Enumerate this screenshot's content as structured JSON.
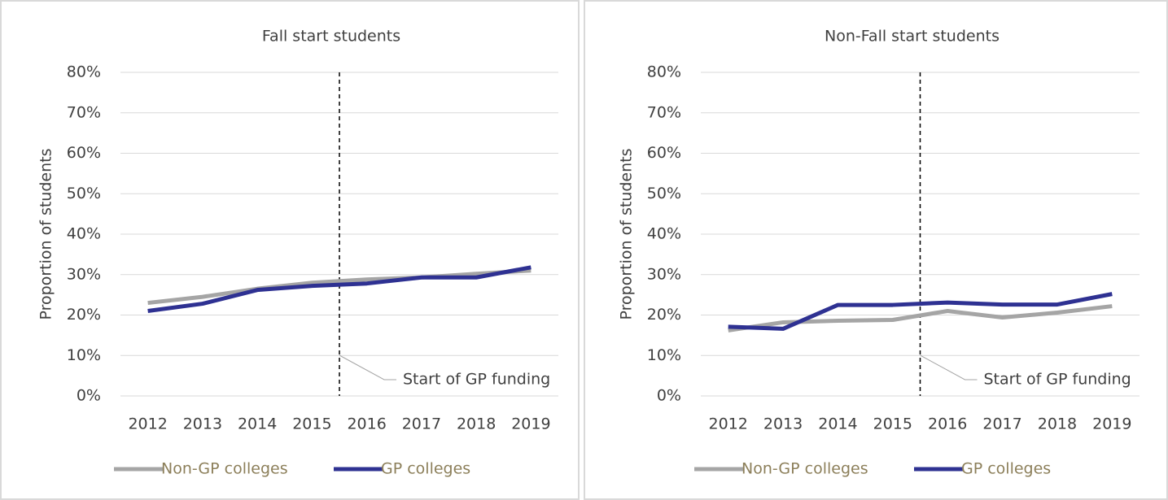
{
  "chart_data": [
    {
      "type": "line",
      "title": "Fall start students",
      "y_label": "Proportion of students",
      "categories": [
        "2012",
        "2013",
        "2014",
        "2015",
        "2016",
        "2017",
        "2018",
        "2019"
      ],
      "series": [
        {
          "name": "Non-GP colleges",
          "color": "#a5a5a5",
          "values": [
            23,
            24.5,
            26.5,
            28,
            28.8,
            29.3,
            30.2,
            31
          ]
        },
        {
          "name": "GP colleges",
          "color": "#2e3192",
          "values": [
            21,
            22.8,
            26.2,
            27.2,
            27.8,
            29.3,
            29.3,
            31.8
          ]
        }
      ],
      "ylim": [
        0,
        80
      ],
      "yticks": [
        {
          "value": 0,
          "label": "0%"
        },
        {
          "value": 10,
          "label": "10%"
        },
        {
          "value": 20,
          "label": "20%"
        },
        {
          "value": 30,
          "label": "30%"
        },
        {
          "value": 40,
          "label": "40%"
        },
        {
          "value": 50,
          "label": "50%"
        },
        {
          "value": 60,
          "label": "60%"
        },
        {
          "value": 70,
          "label": "70%"
        },
        {
          "value": 80,
          "label": "80%"
        }
      ],
      "grid": true,
      "legend": "bottom",
      "annotation": {
        "text": "Start of GP funding",
        "between": [
          "2015",
          "2016"
        ]
      }
    },
    {
      "type": "line",
      "title": "Non-Fall start students",
      "y_label": "Proportion of students",
      "categories": [
        "2012",
        "2013",
        "2014",
        "2015",
        "2016",
        "2017",
        "2018",
        "2019"
      ],
      "series": [
        {
          "name": "Non-GP colleges",
          "color": "#a5a5a5",
          "values": [
            16.2,
            18.2,
            18.6,
            18.8,
            21,
            19.4,
            20.6,
            22.2
          ]
        },
        {
          "name": "GP colleges",
          "color": "#2e3192",
          "values": [
            17.1,
            16.6,
            22.5,
            22.5,
            23.1,
            22.6,
            22.6,
            25.2
          ]
        }
      ],
      "ylim": [
        0,
        80
      ],
      "yticks": [
        {
          "value": 0,
          "label": "0%"
        },
        {
          "value": 10,
          "label": "10%"
        },
        {
          "value": 20,
          "label": "20%"
        },
        {
          "value": 30,
          "label": "30%"
        },
        {
          "value": 40,
          "label": "40%"
        },
        {
          "value": 50,
          "label": "50%"
        },
        {
          "value": 60,
          "label": "60%"
        },
        {
          "value": 70,
          "label": "70%"
        },
        {
          "value": 80,
          "label": "80%"
        }
      ],
      "grid": true,
      "legend": "bottom",
      "annotation": {
        "text": "Start of GP funding",
        "between": [
          "2015",
          "2016"
        ]
      }
    }
  ]
}
